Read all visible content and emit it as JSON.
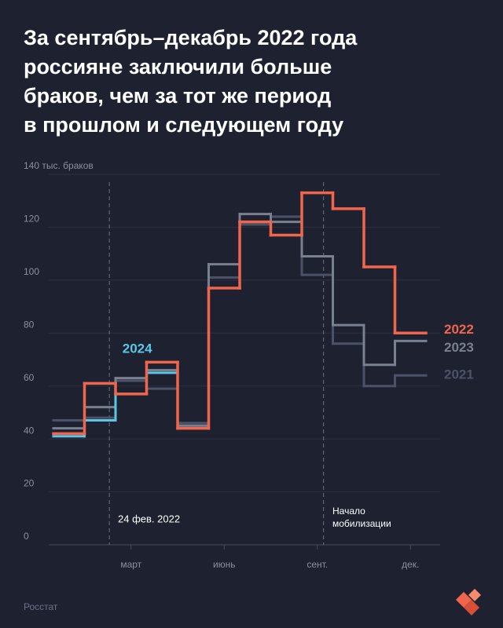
{
  "chart_data": {
    "type": "step",
    "title": [
      "За сентябрь–декабрь 2022 года",
      "россияне заключили больше",
      "браков, чем за тот же период",
      "в прошлом и следующем году"
    ],
    "categories": [
      null,
      null,
      "март",
      null,
      null,
      "июнь",
      null,
      null,
      "сент.",
      null,
      null,
      "дек."
    ],
    "series": [
      {
        "name": "2022",
        "color": "#f0664c",
        "values": [
          42,
          61,
          57,
          69,
          44,
          97,
          122,
          117,
          133,
          127,
          105,
          80
        ]
      },
      {
        "name": "2024",
        "color": "#5cc6e6",
        "values": [
          41,
          47,
          57,
          65,
          null,
          null,
          null,
          null,
          null,
          null,
          null,
          null
        ]
      },
      {
        "name": "2023",
        "color": "#79808f",
        "values": [
          44,
          52,
          63,
          66,
          45,
          106,
          125,
          122,
          109,
          83,
          68,
          77
        ]
      },
      {
        "name": "2021",
        "color": "#4b5266",
        "values": [
          47,
          48,
          62,
          59,
          46,
          101,
          121,
          124,
          102,
          76,
          60,
          64
        ]
      }
    ],
    "ylim": [
      0,
      140
    ],
    "yticks": [
      0,
      20,
      40,
      60,
      80,
      100,
      120,
      {
        "value": 140,
        "label": "140 тыс. браков"
      }
    ],
    "grid": true,
    "annotations": [
      "24 фев. 2022",
      "Начало",
      "мобилизации"
    ],
    "source": "Росстат"
  }
}
